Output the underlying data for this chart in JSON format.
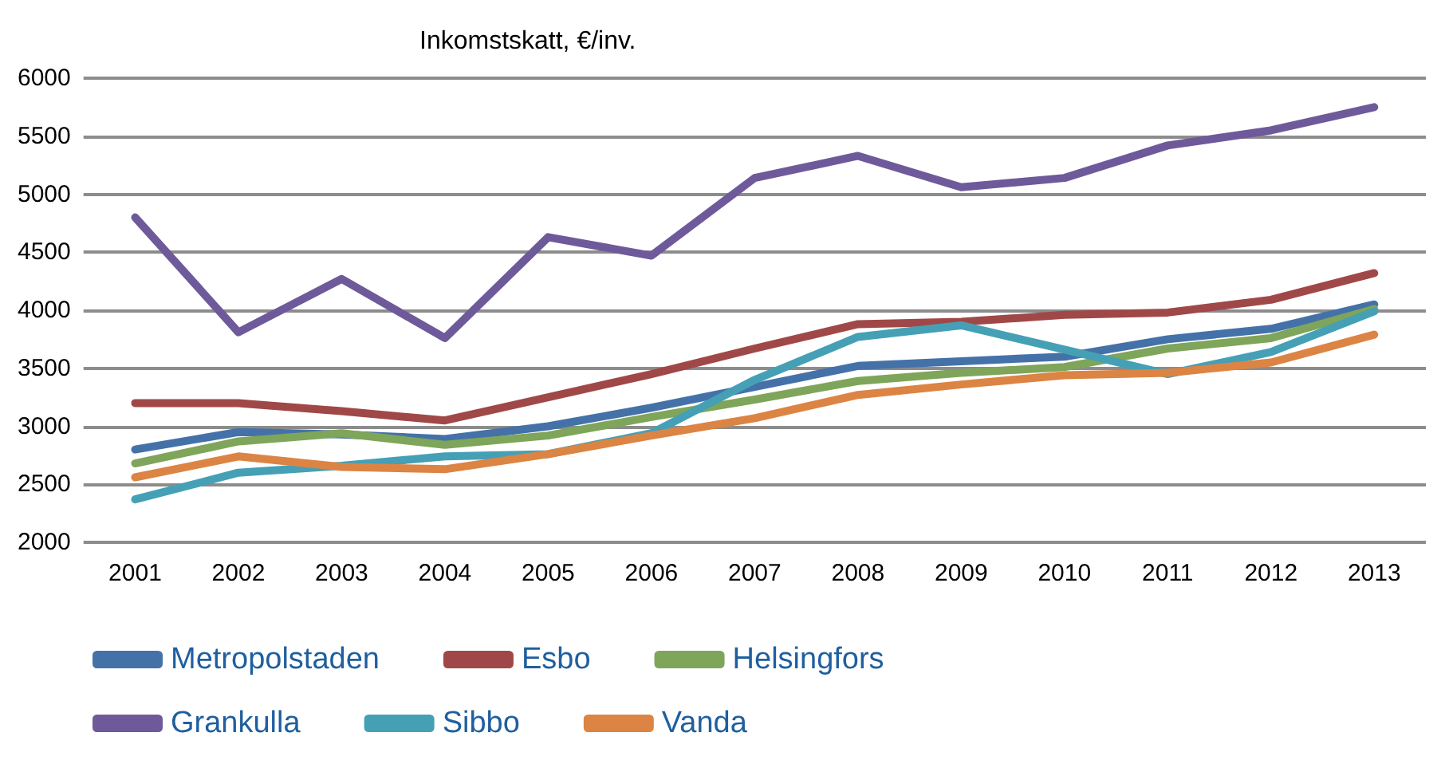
{
  "chart_data": {
    "type": "line",
    "title": "Inkomstskatt, €/inv.",
    "categories": [
      "2001",
      "2002",
      "2003",
      "2004",
      "2005",
      "2006",
      "2007",
      "2008",
      "2009",
      "2010",
      "2011",
      "2012",
      "2013"
    ],
    "ylim": [
      2000,
      6000
    ],
    "yticks": [
      2000,
      2500,
      3000,
      3500,
      4000,
      4500,
      5000,
      5500,
      6000
    ],
    "grid": "y",
    "legend": "bottom",
    "marker": "none",
    "line_style": "solid",
    "series": [
      {
        "name": "Metropolstaden",
        "color": "#4472a8",
        "values": [
          2800,
          2950,
          2930,
          2890,
          3000,
          3160,
          3340,
          3520,
          3560,
          3600,
          3750,
          3840,
          4050
        ]
      },
      {
        "name": "Esbo",
        "color": "#a04848",
        "values": [
          3200,
          3200,
          3130,
          3050,
          3250,
          3450,
          3670,
          3880,
          3900,
          3960,
          3980,
          4090,
          4320
        ]
      },
      {
        "name": "Helsingfors",
        "color": "#7ea55a",
        "values": [
          2680,
          2870,
          2940,
          2840,
          2920,
          3080,
          3230,
          3390,
          3460,
          3510,
          3670,
          3760,
          4010
        ]
      },
      {
        "name": "Grankulla",
        "color": "#6e5a9a",
        "values": [
          4800,
          3810,
          4270,
          3760,
          4630,
          4470,
          5140,
          5330,
          5060,
          5140,
          5420,
          5550,
          5750
        ]
      },
      {
        "name": "Sibbo",
        "color": "#45a0b5",
        "values": [
          2370,
          2600,
          2660,
          2740,
          2760,
          2940,
          3400,
          3770,
          3870,
          3660,
          3450,
          3640,
          3990
        ]
      },
      {
        "name": "Vanda",
        "color": "#dc8444",
        "values": [
          2560,
          2740,
          2650,
          2630,
          2760,
          2920,
          3070,
          3270,
          3360,
          3440,
          3460,
          3550,
          3790
        ]
      }
    ]
  }
}
